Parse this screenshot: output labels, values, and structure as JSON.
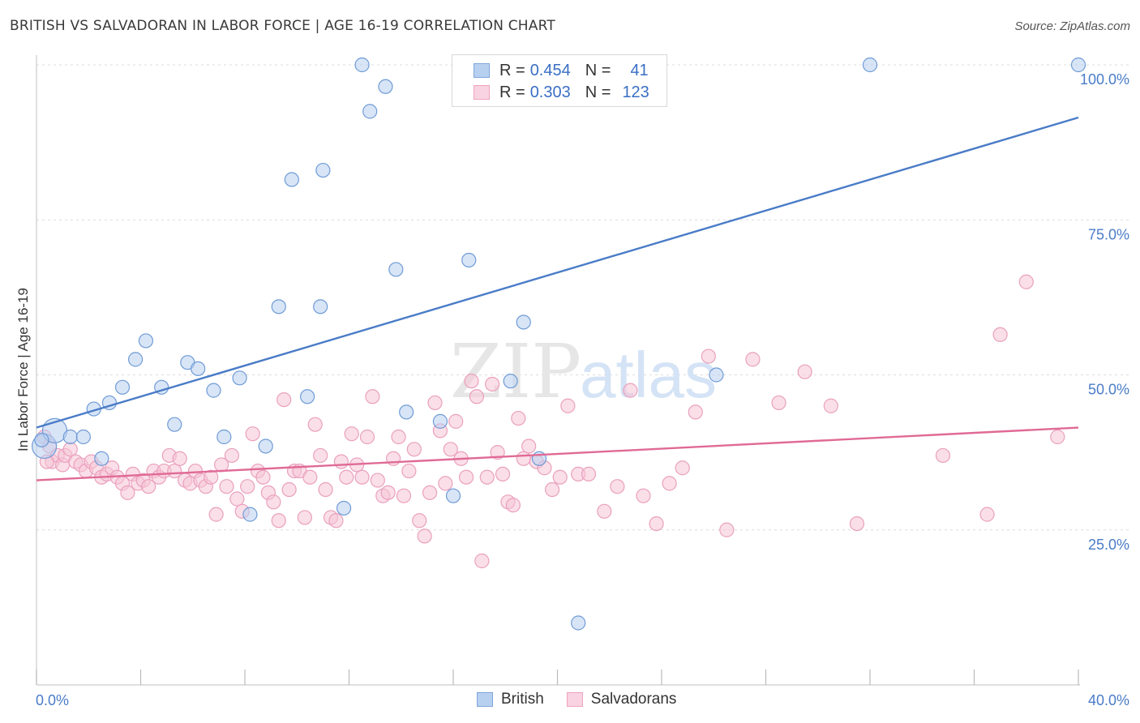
{
  "title": "BRITISH VS SALVADORAN IN LABOR FORCE | AGE 16-19 CORRELATION CHART",
  "source": "Source: ZipAtlas.com",
  "watermark": {
    "zip": "ZIP",
    "atlas": "atlas"
  },
  "colors": {
    "british": "#4a7cc7",
    "british_fill": "#b8d0f0",
    "salvadoran": "#e06a95",
    "salvadoran_fill": "#f6c4d6",
    "axis_text": "#4a7cc7"
  },
  "legend": {
    "rows": [
      {
        "r_label": "R =",
        "r_value": "0.454",
        "n_label": "N =",
        "n_value": "41"
      },
      {
        "r_label": "R =",
        "r_value": "0.303",
        "n_label": "N =",
        "n_value": "123"
      }
    ],
    "bottom": [
      "British",
      "Salvadorans"
    ]
  },
  "chart_data": {
    "type": "scatter",
    "title": "BRITISH VS SALVADORAN IN LABOR FORCE | AGE 16-19 CORRELATION CHART",
    "xlabel": "",
    "ylabel": "In Labor Force | Age 16-19",
    "xlim": [
      0,
      40
    ],
    "ylim": [
      0,
      102
    ],
    "x_tick_labels": [
      "0.0%",
      "40.0%"
    ],
    "y_ticks": [
      25,
      50,
      75,
      100
    ],
    "y_tick_labels": [
      "25.0%",
      "50.0%",
      "75.0%",
      "100.0%"
    ],
    "grid": true,
    "legend_position": "top-center",
    "series": [
      {
        "name": "British",
        "R": 0.454,
        "N": 41,
        "trend": {
          "x": [
            0,
            40
          ],
          "y": [
            41.5,
            91.5
          ]
        },
        "points": [
          [
            0.3,
            38.5
          ],
          [
            0.7,
            41.0
          ],
          [
            1.3,
            40.0
          ],
          [
            1.8,
            40.0
          ],
          [
            2.2,
            44.5
          ],
          [
            2.8,
            45.5
          ],
          [
            3.3,
            48.0
          ],
          [
            3.8,
            52.5
          ],
          [
            4.2,
            55.5
          ],
          [
            4.8,
            48.0
          ],
          [
            5.3,
            42.0
          ],
          [
            5.8,
            52.0
          ],
          [
            6.2,
            51.0
          ],
          [
            6.8,
            47.5
          ],
          [
            7.2,
            40.0
          ],
          [
            7.8,
            49.5
          ],
          [
            8.2,
            27.5
          ],
          [
            8.8,
            38.5
          ],
          [
            9.3,
            61.0
          ],
          [
            9.8,
            81.5
          ],
          [
            10.4,
            46.5
          ],
          [
            10.9,
            61.0
          ],
          [
            11.0,
            83.0
          ],
          [
            11.8,
            28.5
          ],
          [
            12.5,
            100.0
          ],
          [
            12.8,
            92.5
          ],
          [
            13.4,
            96.5
          ],
          [
            13.8,
            67.0
          ],
          [
            14.2,
            44.0
          ],
          [
            15.5,
            42.5
          ],
          [
            16.0,
            30.5
          ],
          [
            16.6,
            68.5
          ],
          [
            18.2,
            49.0
          ],
          [
            18.7,
            58.5
          ],
          [
            19.3,
            36.5
          ],
          [
            20.8,
            10.0
          ],
          [
            26.1,
            50.0
          ],
          [
            32.0,
            100.0
          ],
          [
            40.0,
            100.0
          ],
          [
            0.2,
            39.5
          ],
          [
            2.5,
            36.5
          ]
        ]
      },
      {
        "name": "Salvadorans",
        "R": 0.303,
        "N": 123,
        "trend": {
          "x": [
            0,
            40
          ],
          "y": [
            33.0,
            41.5
          ]
        },
        "points": [
          [
            0.3,
            40.0
          ],
          [
            0.5,
            38.5
          ],
          [
            0.6,
            36.0
          ],
          [
            0.8,
            37.0
          ],
          [
            1.0,
            35.5
          ],
          [
            1.1,
            37.0
          ],
          [
            1.3,
            38.0
          ],
          [
            1.5,
            36.0
          ],
          [
            1.7,
            35.5
          ],
          [
            1.9,
            34.5
          ],
          [
            2.1,
            36.0
          ],
          [
            2.3,
            35.0
          ],
          [
            2.5,
            33.5
          ],
          [
            2.7,
            34.0
          ],
          [
            2.9,
            35.0
          ],
          [
            3.1,
            33.5
          ],
          [
            3.3,
            32.5
          ],
          [
            3.5,
            31.0
          ],
          [
            3.7,
            34.0
          ],
          [
            3.9,
            32.5
          ],
          [
            4.1,
            33.0
          ],
          [
            4.3,
            32.0
          ],
          [
            4.5,
            34.5
          ],
          [
            4.7,
            33.5
          ],
          [
            4.9,
            34.5
          ],
          [
            5.1,
            37.0
          ],
          [
            5.3,
            34.5
          ],
          [
            5.5,
            36.5
          ],
          [
            5.7,
            33.0
          ],
          [
            5.9,
            32.5
          ],
          [
            6.1,
            34.5
          ],
          [
            6.3,
            33.0
          ],
          [
            6.5,
            32.0
          ],
          [
            6.7,
            33.5
          ],
          [
            6.9,
            27.5
          ],
          [
            7.1,
            35.5
          ],
          [
            7.3,
            32.0
          ],
          [
            7.5,
            37.0
          ],
          [
            7.7,
            30.0
          ],
          [
            7.9,
            28.0
          ],
          [
            8.1,
            32.0
          ],
          [
            8.3,
            40.5
          ],
          [
            8.5,
            34.5
          ],
          [
            8.7,
            33.5
          ],
          [
            8.9,
            31.0
          ],
          [
            9.1,
            29.5
          ],
          [
            9.3,
            26.5
          ],
          [
            9.5,
            46.0
          ],
          [
            9.7,
            31.5
          ],
          [
            9.9,
            34.5
          ],
          [
            10.1,
            34.5
          ],
          [
            10.3,
            27.0
          ],
          [
            10.5,
            33.5
          ],
          [
            10.7,
            42.0
          ],
          [
            10.9,
            37.0
          ],
          [
            11.1,
            31.5
          ],
          [
            11.3,
            27.0
          ],
          [
            11.5,
            26.5
          ],
          [
            11.7,
            36.0
          ],
          [
            11.9,
            33.5
          ],
          [
            12.1,
            40.5
          ],
          [
            12.3,
            35.5
          ],
          [
            12.5,
            33.5
          ],
          [
            12.7,
            40.0
          ],
          [
            12.9,
            46.5
          ],
          [
            13.1,
            33.0
          ],
          [
            13.3,
            30.5
          ],
          [
            13.5,
            31.0
          ],
          [
            13.7,
            36.5
          ],
          [
            13.9,
            40.0
          ],
          [
            14.1,
            30.5
          ],
          [
            14.3,
            34.5
          ],
          [
            14.5,
            38.0
          ],
          [
            14.7,
            26.5
          ],
          [
            14.9,
            24.0
          ],
          [
            15.1,
            31.0
          ],
          [
            15.3,
            45.5
          ],
          [
            15.5,
            41.0
          ],
          [
            15.7,
            32.5
          ],
          [
            15.9,
            38.0
          ],
          [
            16.1,
            42.5
          ],
          [
            16.3,
            36.5
          ],
          [
            16.5,
            33.5
          ],
          [
            16.7,
            49.0
          ],
          [
            16.9,
            46.5
          ],
          [
            17.1,
            20.0
          ],
          [
            17.3,
            33.5
          ],
          [
            17.5,
            48.5
          ],
          [
            17.7,
            37.5
          ],
          [
            17.9,
            34.0
          ],
          [
            18.1,
            29.5
          ],
          [
            18.3,
            29.0
          ],
          [
            18.5,
            43.0
          ],
          [
            18.7,
            36.5
          ],
          [
            18.9,
            38.5
          ],
          [
            19.2,
            36.0
          ],
          [
            19.5,
            35.0
          ],
          [
            19.8,
            31.5
          ],
          [
            20.1,
            33.5
          ],
          [
            20.4,
            45.0
          ],
          [
            20.8,
            34.0
          ],
          [
            21.2,
            34.0
          ],
          [
            21.8,
            28.0
          ],
          [
            22.3,
            32.0
          ],
          [
            22.8,
            47.5
          ],
          [
            23.3,
            30.5
          ],
          [
            23.8,
            26.0
          ],
          [
            24.3,
            32.5
          ],
          [
            24.8,
            35.0
          ],
          [
            25.3,
            44.0
          ],
          [
            25.8,
            53.0
          ],
          [
            26.5,
            25.0
          ],
          [
            27.5,
            52.5
          ],
          [
            28.5,
            45.5
          ],
          [
            29.5,
            50.5
          ],
          [
            30.5,
            45.0
          ],
          [
            31.5,
            26.0
          ],
          [
            34.8,
            37.0
          ],
          [
            36.5,
            27.5
          ],
          [
            37.0,
            56.5
          ],
          [
            38.0,
            65.0
          ],
          [
            39.2,
            40.0
          ],
          [
            0.4,
            36.0
          ]
        ]
      }
    ]
  }
}
